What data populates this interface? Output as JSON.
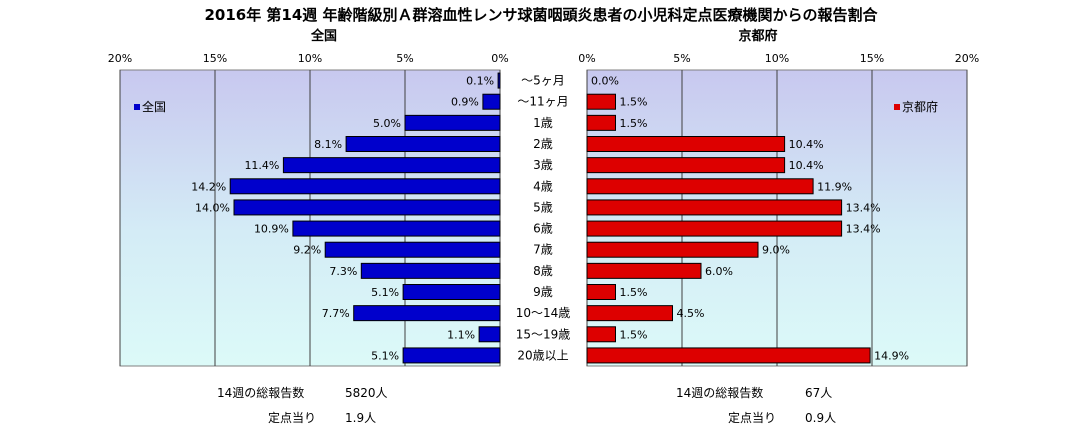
{
  "title": "2016年 第14週 年齢階級別Ａ群溶血性レンサ球菌咽頭炎患者の小児科定点医療機関からの報告割合",
  "chart_data": {
    "type": "bar",
    "categories": [
      "～5ヶ月",
      "～11ヶ月",
      "1歳",
      "2歳",
      "3歳",
      "4歳",
      "5歳",
      "6歳",
      "7歳",
      "8歳",
      "9歳",
      "10～14歳",
      "15～19歳",
      "20歳以上"
    ],
    "x_ticks": [
      "0%",
      "5%",
      "10%",
      "15%",
      "20%"
    ],
    "xlim": [
      0,
      20
    ],
    "grid": true,
    "panels": [
      {
        "id": "national",
        "subtitle": "全国",
        "legend": "全国",
        "legend_position": "top-left",
        "direction": "left",
        "color": "#0000cc",
        "values": [
          0.1,
          0.9,
          5.0,
          8.1,
          11.4,
          14.2,
          14.0,
          10.9,
          9.2,
          7.3,
          5.1,
          7.7,
          1.1,
          5.1
        ],
        "labels": [
          "0.1%",
          "0.9%",
          "5.0%",
          "8.1%",
          "11.4%",
          "14.2%",
          "14.0%",
          "10.9%",
          "9.2%",
          "7.3%",
          "5.1%",
          "7.7%",
          "1.1%",
          "5.1%"
        ]
      },
      {
        "id": "kyoto",
        "subtitle": "京都府",
        "legend": "京都府",
        "legend_position": "top-right",
        "direction": "right",
        "color": "#dd0000",
        "values": [
          0.0,
          1.5,
          1.5,
          10.4,
          10.4,
          11.9,
          13.4,
          13.4,
          9.0,
          6.0,
          1.5,
          4.5,
          1.5,
          14.9
        ],
        "labels": [
          "0.0%",
          "1.5%",
          "1.5%",
          "10.4%",
          "10.4%",
          "11.9%",
          "13.4%",
          "13.4%",
          "9.0%",
          "6.0%",
          "1.5%",
          "4.5%",
          "1.5%",
          "14.9%"
        ]
      }
    ]
  },
  "footer": {
    "national_total_label": "14週の総報告数",
    "national_total_value": "5820人",
    "national_per_label": "定点当り",
    "national_per_value": "1.9人",
    "kyoto_total_label": "14週の総報告数",
    "kyoto_total_value": "67人",
    "kyoto_per_label": "定点当り",
    "kyoto_per_value": "0.9人"
  }
}
